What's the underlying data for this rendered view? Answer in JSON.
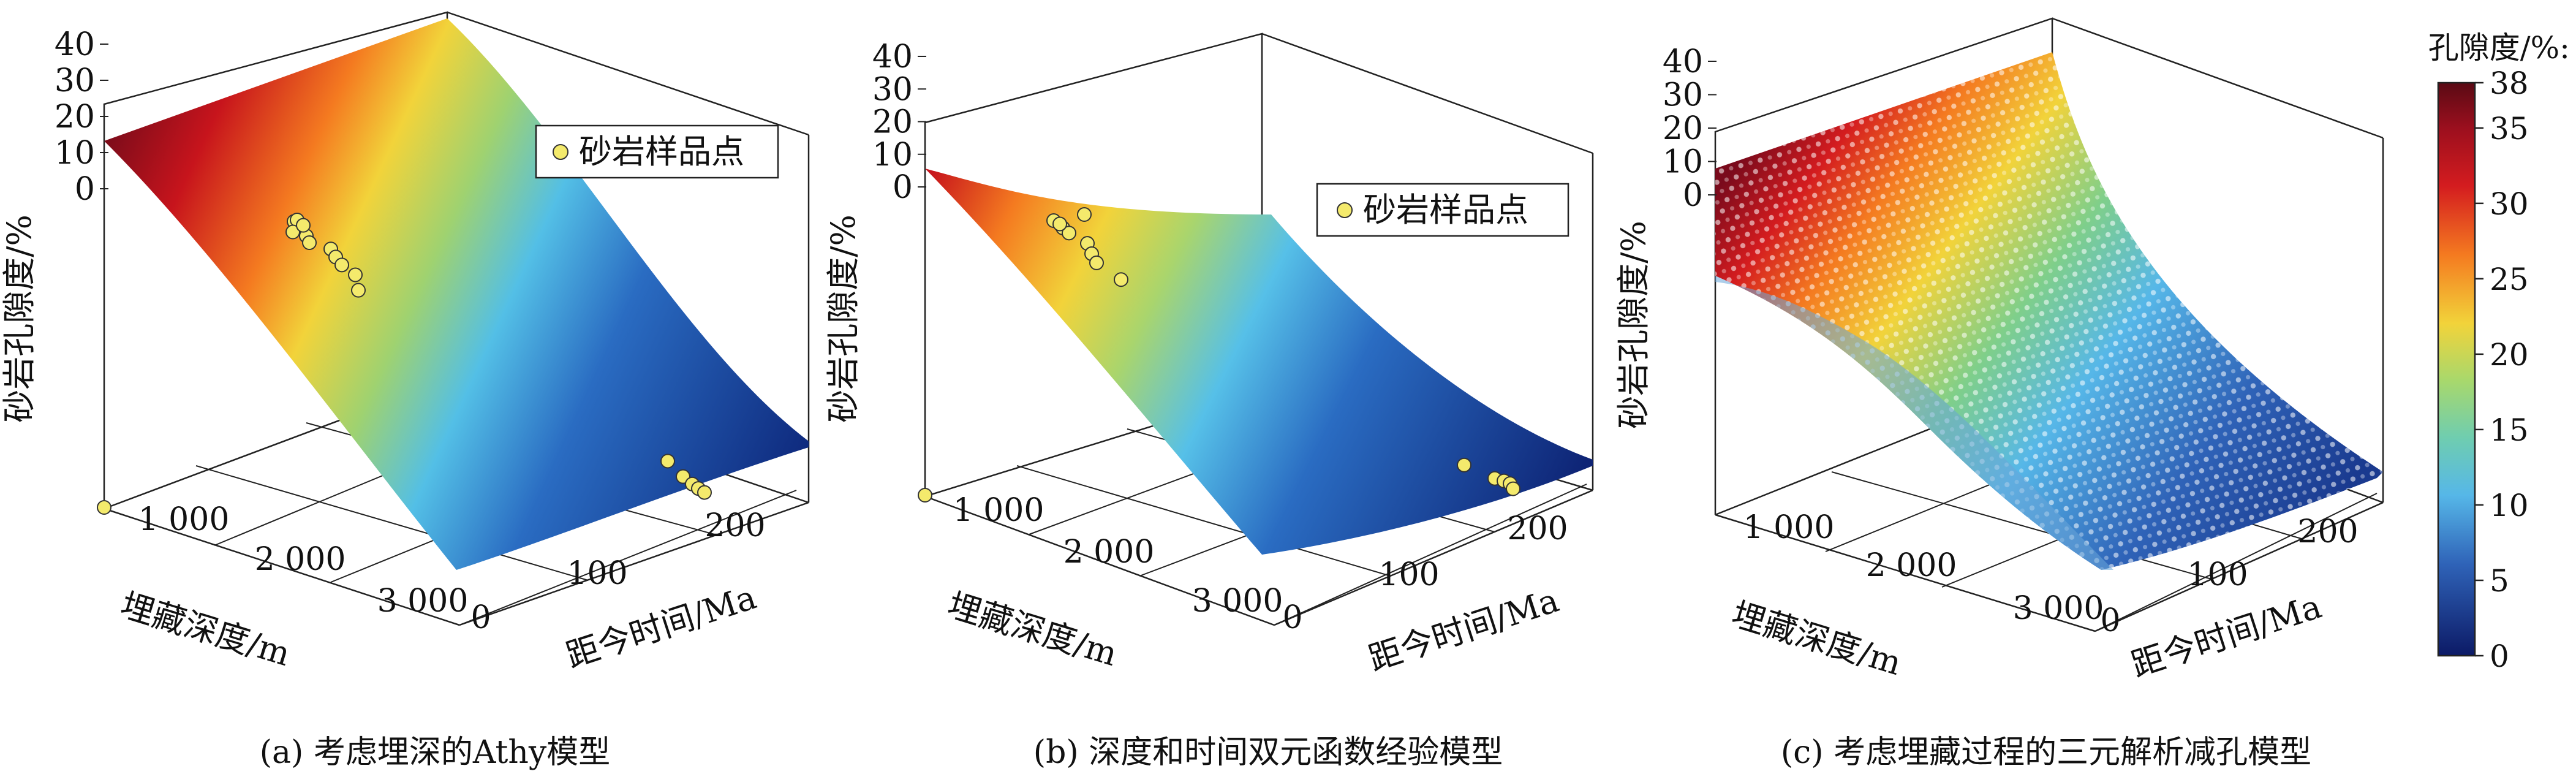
{
  "legend_label": "砂岩样品点",
  "colorbar": {
    "title": "孔隙度/%:",
    "min": 0,
    "max": 38,
    "ticks": [
      38,
      35,
      30,
      25,
      20,
      15,
      10,
      5,
      0
    ],
    "colormap": [
      "#5a0a14",
      "#d41c1f",
      "#f47a20",
      "#f2d33a",
      "#a8d86c",
      "#56b7e8",
      "#2f63b8",
      "#0c1a66"
    ]
  },
  "panels": [
    {
      "caption": "(a) 考虑埋深的Athy模型",
      "zlabel": "砂岩孔隙度/%",
      "depth_label": "埋藏深度/m",
      "time_label": "距今时间/Ma",
      "z_ticks": [
        "0",
        "10",
        "20",
        "30",
        "40"
      ],
      "depth_ticks": [
        "1 000",
        "2 000",
        "3 000"
      ],
      "time_ticks": [
        "0",
        "100",
        "200"
      ]
    },
    {
      "caption": "(b) 深度和时间双元函数经验模型",
      "zlabel": "砂岩孔隙度/%",
      "depth_label": "埋藏深度/m",
      "time_label": "距今时间/Ma",
      "z_ticks": [
        "0",
        "10",
        "20",
        "30",
        "40"
      ],
      "depth_ticks": [
        "1 000",
        "2 000",
        "3 000"
      ],
      "time_ticks": [
        "0",
        "100",
        "200"
      ]
    },
    {
      "caption": "(c) 考虑埋藏过程的三元解析减孔模型",
      "zlabel": "砂岩孔隙度/%",
      "depth_label": "埋藏深度/m",
      "time_label": "距今时间/Ma",
      "z_ticks": [
        "0",
        "10",
        "20",
        "30",
        "40"
      ],
      "depth_ticks": [
        "1 000",
        "2 000",
        "3 000"
      ],
      "time_ticks": [
        "0",
        "100",
        "200"
      ]
    }
  ],
  "chart_data": [
    {
      "type": "scatter",
      "title": "",
      "xlabel": "埋藏深度/m",
      "ylabel": "距今时间/Ma",
      "zlabel": "砂岩孔隙度/%",
      "xlim": [
        0,
        3000
      ],
      "ylim": [
        0,
        200
      ],
      "zlim": [
        0,
        40
      ],
      "surface": "Athy",
      "series": [
        {
          "name": "砂岩样品点",
          "points": [
            {
              "z": 21.5
            },
            {
              "z": 22.5
            },
            {
              "z": 20.8
            },
            {
              "z": 21.0
            },
            {
              "z": 22.0
            },
            {
              "z": 20.2
            },
            {
              "z": 19.5
            },
            {
              "z": 18.8
            },
            {
              "z": 18.0
            },
            {
              "z": 16.5
            },
            {
              "z": 15.8
            },
            {
              "z": 2.5
            },
            {
              "z": 1.8
            },
            {
              "z": 1.5
            },
            {
              "z": 1.2
            },
            {
              "z": 1.0
            },
            {
              "z": 0.0
            }
          ]
        }
      ]
    },
    {
      "type": "scatter",
      "title": "",
      "xlabel": "埋藏深度/m",
      "ylabel": "距今时间/Ma",
      "zlabel": "砂岩孔隙度/%",
      "xlim": [
        0,
        3000
      ],
      "ylim": [
        0,
        200
      ],
      "zlim": [
        0,
        40
      ],
      "surface": "depth-time empirical",
      "series": [
        {
          "name": "砂岩样品点",
          "points": [
            {
              "z": 22.0
            },
            {
              "z": 21.0
            },
            {
              "z": 20.5
            },
            {
              "z": 21.5
            },
            {
              "z": 22.0
            },
            {
              "z": 19.5
            },
            {
              "z": 18.5
            },
            {
              "z": 17.5
            },
            {
              "z": 16.0
            },
            {
              "z": 2.5
            },
            {
              "z": 1.5
            },
            {
              "z": 1.2
            },
            {
              "z": 1.0
            },
            {
              "z": 0.5
            },
            {
              "z": 0.0
            }
          ]
        }
      ]
    },
    {
      "type": "scatter",
      "title": "",
      "xlabel": "埋藏深度/m",
      "ylabel": "距今时间/Ma",
      "zlabel": "砂岩孔隙度/%",
      "xlim": [
        0,
        3000
      ],
      "ylim": [
        0,
        200
      ],
      "zlim": [
        0,
        40
      ],
      "surface": "burial-process analytical",
      "series": []
    }
  ]
}
